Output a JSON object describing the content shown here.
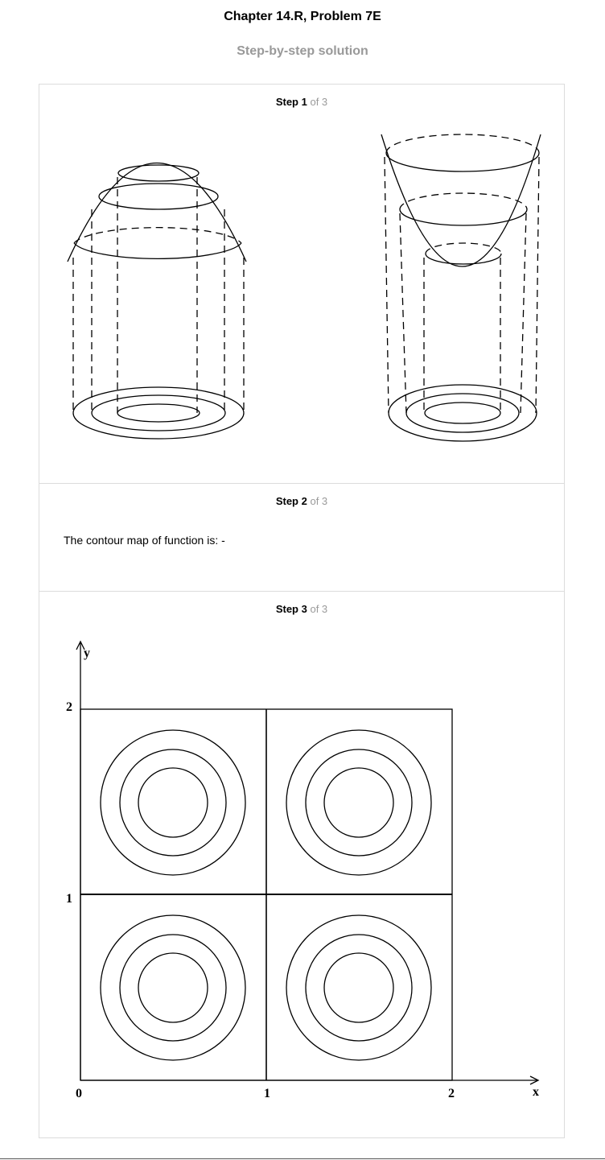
{
  "header": {
    "title": "Chapter 14.R, Problem 7E",
    "subtitle": "Step-by-step solution"
  },
  "steps": [
    {
      "label": "Step 1",
      "of": "of 3"
    },
    {
      "label": "Step 2",
      "of": "of 3",
      "text": "The contour map of function is: -"
    },
    {
      "label": "Step 3",
      "of": "of 3"
    }
  ],
  "figure1": {
    "description_icons": [
      "downward-paraboloid-surface",
      "upward-paraboloid-surface"
    ]
  },
  "contour_plot": {
    "x_ticks": [
      "0",
      "1",
      "2"
    ],
    "y_ticks": [
      "1",
      "2"
    ],
    "x_axis_label": "x",
    "y_axis_label": "y",
    "cells": 4,
    "rings_per_cell": 3
  }
}
